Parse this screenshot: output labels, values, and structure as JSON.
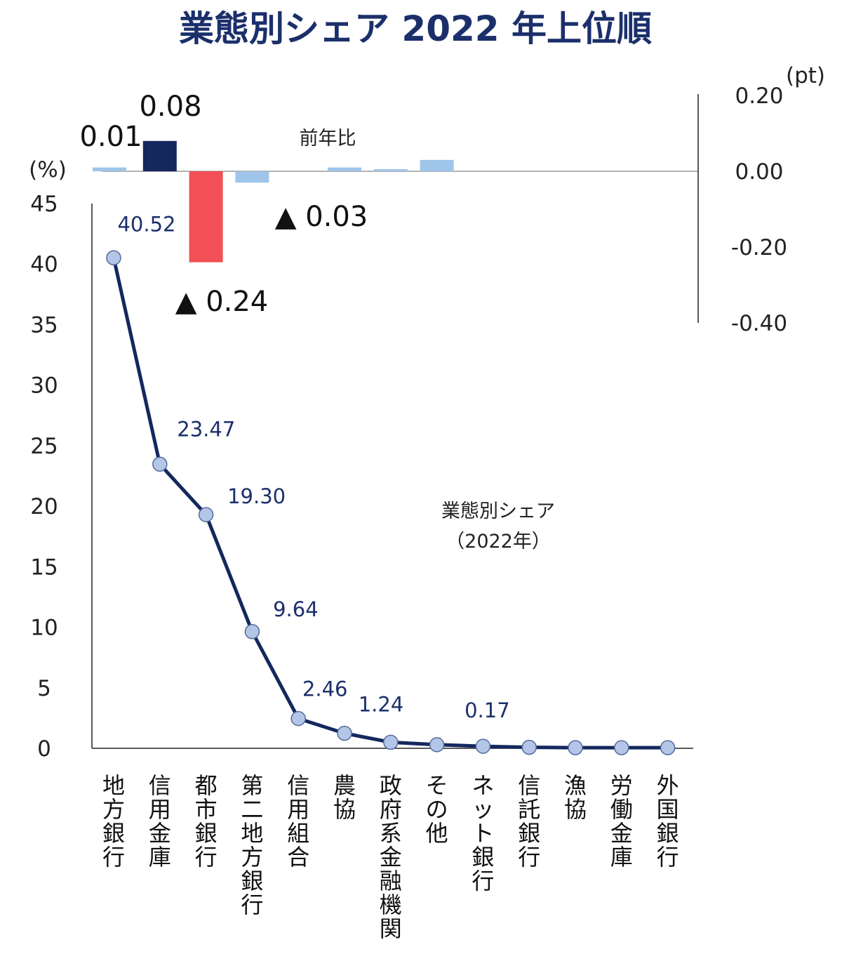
{
  "chart_data": {
    "title": "業態別シェア 2022 年上位順",
    "share_series": {
      "type": "line",
      "name": "業態別シェア（2022年）",
      "legend_line1": "業態別シェア",
      "legend_line2": "（2022年）",
      "unit_label": "(%)",
      "ylim": [
        0,
        45
      ],
      "yticks": [
        "0",
        "5",
        "10",
        "15",
        "20",
        "25",
        "30",
        "35",
        "40",
        "45"
      ],
      "categories": [
        "地方銀行",
        "信用金庫",
        "都市銀行",
        "第二地方銀行",
        "信用組合",
        "農協",
        "政府系金融機関",
        "その他",
        "ネット銀行",
        "信託銀行",
        "漁協",
        "労働金庫",
        "外国銀行"
      ],
      "values": [
        40.52,
        23.47,
        19.3,
        9.64,
        2.46,
        1.24,
        0.5,
        0.3,
        0.17,
        0.08,
        0.05,
        0.05,
        0.05
      ],
      "value_labels": [
        "40.52",
        "23.47",
        "19.30",
        "9.64",
        "2.46",
        "1.24",
        "",
        "",
        "0.17",
        "",
        "",
        "",
        ""
      ]
    },
    "yoy_series": {
      "type": "bar",
      "name": "前年比",
      "unit_label": "(pt)",
      "ylim": [
        -0.4,
        0.2
      ],
      "yticks": [
        "0.20",
        "0.00",
        "-0.20",
        "-0.40"
      ],
      "values": [
        0.01,
        0.08,
        -0.24,
        -0.03,
        0.0,
        0.01,
        0.005,
        0.03,
        0.0,
        0.0,
        0.0,
        0.0,
        0.0
      ],
      "labels": {
        "0": "0.01",
        "1": "0.08",
        "2": "▲ 0.24",
        "3": "▲ 0.03"
      }
    },
    "colors": {
      "title": "#1b2f6b",
      "line": "#14285e",
      "marker_fill": "#b4c6e7",
      "marker_stroke": "#556a9c",
      "value_label": "#1b2f6b",
      "bar_highlight_pos": "#14285e",
      "bar_highlight_neg": "#f24f56",
      "bar_default": "#9fc5ea",
      "axis": "#222222"
    }
  }
}
